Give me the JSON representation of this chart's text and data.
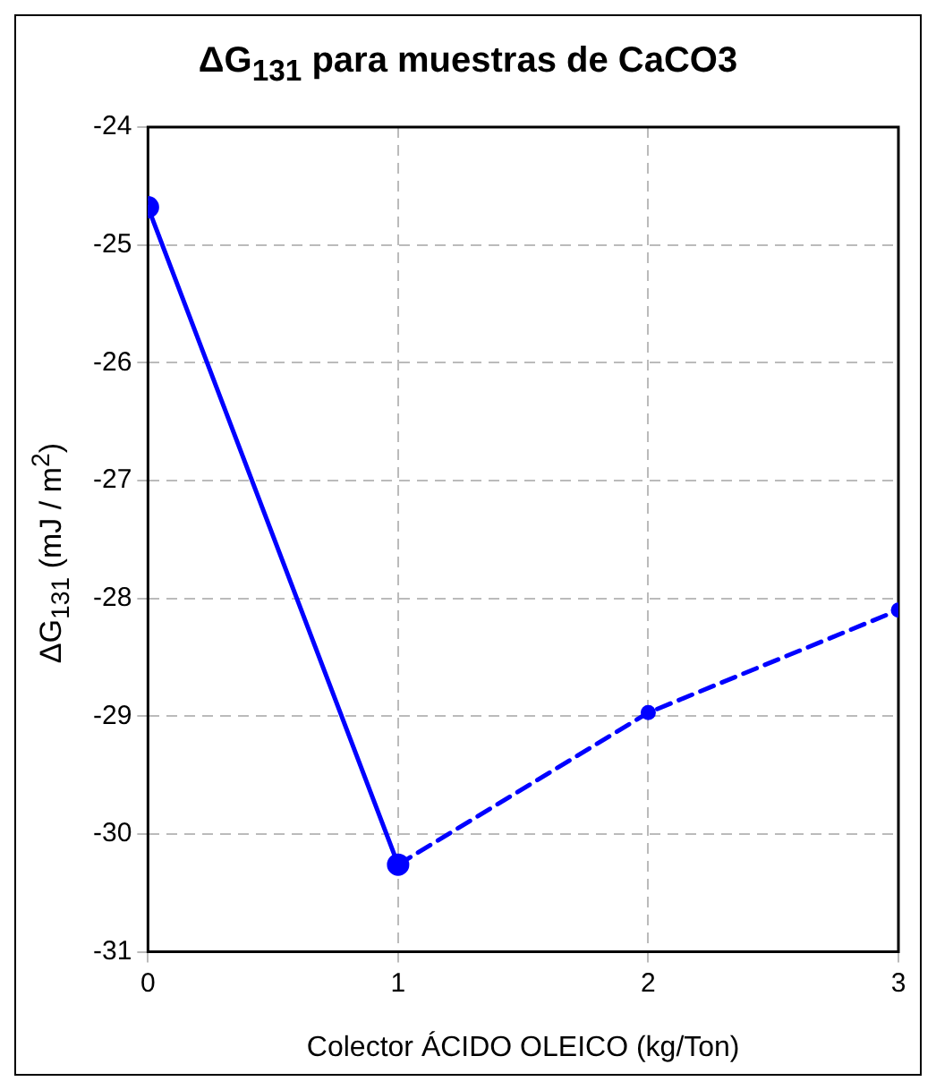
{
  "chart_data": {
    "type": "line",
    "title": "ΔG$_{131}$  para muestras de CaCO3",
    "xlabel": "Colector ÁCIDO OLEICO (kg/Ton)",
    "ylabel": "ΔG$_{131}$ (mJ / m$^{2}$)",
    "series": [
      {
        "color": "#0000ff",
        "line_style": "solid",
        "x": [
          0,
          1
        ],
        "values": [
          -24.68,
          -30.26
        ]
      },
      {
        "color": "#0000ff",
        "line_style": "dashed",
        "x": [
          1,
          2,
          3
        ],
        "values": [
          -30.26,
          -28.97,
          -28.1
        ]
      }
    ],
    "xlim": [
      0,
      3
    ],
    "xticks": [
      0,
      1,
      2,
      3
    ],
    "ylim": [
      -31,
      -24
    ],
    "yticks": [
      -31,
      -30,
      -29,
      -28,
      -27,
      -26,
      -25,
      -24
    ],
    "grid": true,
    "marker": "circle",
    "legend": false
  }
}
